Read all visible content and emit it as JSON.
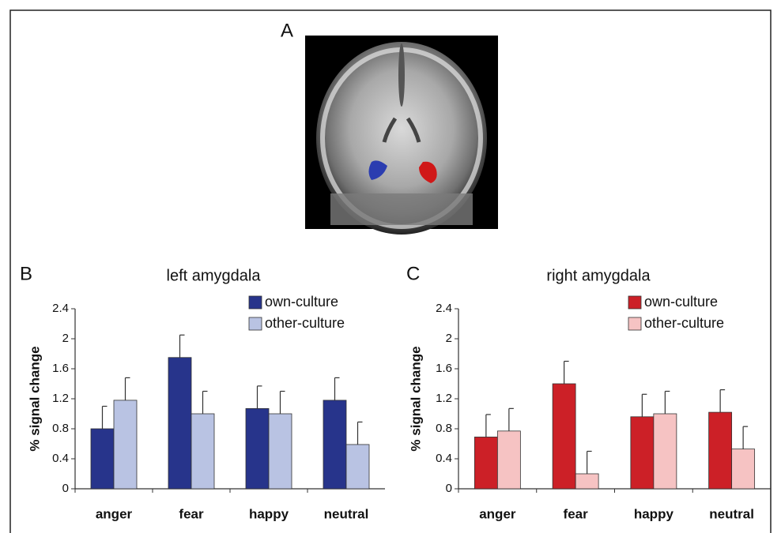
{
  "panel_labels": [
    "A",
    "B",
    "C"
  ],
  "chart_data": [
    {
      "type": "bar",
      "title": "left amygdala",
      "y_label": "% signal change",
      "categories": [
        "anger",
        "fear",
        "happy",
        "neutral"
      ],
      "series": [
        {
          "name": "own-culture",
          "color": "#27348b",
          "values": [
            0.8,
            1.75,
            1.07,
            1.18
          ],
          "errors": [
            0.3,
            0.3,
            0.3,
            0.3
          ]
        },
        {
          "name": "other-culture",
          "color": "#b9c3e3",
          "values": [
            1.18,
            1.0,
            1.0,
            0.59
          ],
          "errors": [
            0.3,
            0.3,
            0.3,
            0.3
          ]
        }
      ],
      "ylim": [
        0,
        2.4
      ],
      "yticks": [
        0,
        0.4,
        0.8,
        1.2,
        1.6,
        2,
        2.4
      ],
      "grid": false,
      "legend": "top-right"
    },
    {
      "type": "bar",
      "title": "right amygdala",
      "y_label": "% signal change",
      "categories": [
        "anger",
        "fear",
        "happy",
        "neutral"
      ],
      "series": [
        {
          "name": "own-culture",
          "color": "#cc2027",
          "values": [
            0.69,
            1.4,
            0.96,
            1.02
          ],
          "errors": [
            0.3,
            0.3,
            0.3,
            0.3
          ]
        },
        {
          "name": "other-culture",
          "color": "#f6c3c3",
          "values": [
            0.77,
            0.2,
            1.0,
            0.53
          ],
          "errors": [
            0.3,
            0.3,
            0.3,
            0.3
          ]
        }
      ],
      "ylim": [
        0,
        2.4
      ],
      "yticks": [
        0,
        0.4,
        0.8,
        1.2,
        1.6,
        2,
        2.4
      ],
      "grid": false,
      "legend": "top-right"
    }
  ]
}
